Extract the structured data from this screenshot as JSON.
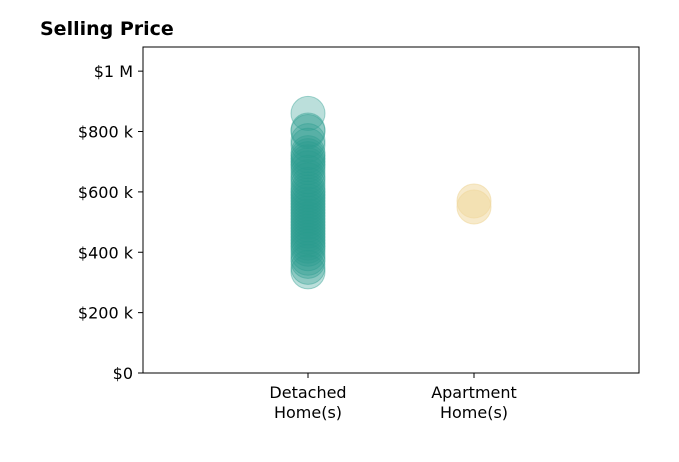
{
  "chart_data": {
    "type": "scatter",
    "title": "Selling Price",
    "xlabel": "",
    "ylabel": "",
    "categories": [
      [
        "Detached",
        "Home(s)"
      ],
      [
        "Apartment",
        "Home(s)"
      ]
    ],
    "ylim": [
      0,
      1080000
    ],
    "yticks": [
      0,
      200000,
      400000,
      600000,
      800000,
      1000000
    ],
    "ytick_labels": [
      "$0",
      "$200 k",
      "$400 k",
      "$600 k",
      "$800 k",
      "$1 M"
    ],
    "grid": false,
    "legend": "none",
    "series": [
      {
        "category_index": 0,
        "color": "#2a9d8f",
        "opacity": 0.32,
        "values": [
          860000,
          805000,
          800000,
          770000,
          755000,
          730000,
          720000,
          710000,
          700000,
          690000,
          680000,
          665000,
          650000,
          640000,
          625000,
          610000,
          600000,
          590000,
          580000,
          570000,
          560000,
          550000,
          540000,
          530000,
          520000,
          510000,
          500000,
          490000,
          480000,
          470000,
          460000,
          450000,
          440000,
          430000,
          420000,
          410000,
          395000,
          380000,
          370000,
          350000,
          335000
        ]
      },
      {
        "category_index": 1,
        "color": "#f0d8a0",
        "opacity": 0.55,
        "values": [
          570000,
          550000
        ]
      }
    ]
  }
}
